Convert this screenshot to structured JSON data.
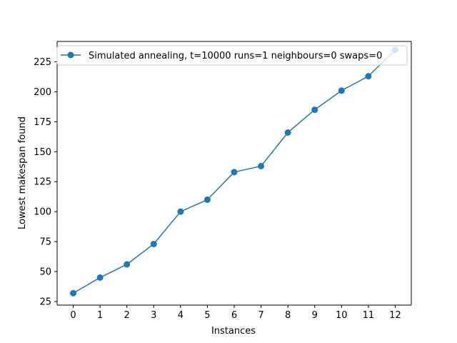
{
  "chart_data": {
    "type": "line",
    "title": "",
    "xlabel": "Instances",
    "ylabel": "Lowest makespan found",
    "x": [
      0,
      1,
      2,
      3,
      4,
      5,
      6,
      7,
      8,
      9,
      10,
      11,
      12
    ],
    "series": [
      {
        "name": "Simulated annealing, t=10000 runs=1 neighbours=0 swaps=0",
        "color": "#1f77b4",
        "marker": "circle",
        "values": [
          32,
          45,
          56,
          73,
          100,
          110,
          133,
          138,
          166,
          185,
          201,
          213,
          235
        ]
      }
    ],
    "xlim": [
      -0.6,
      12.6
    ],
    "ylim": [
      22,
      242
    ],
    "xticks": [
      0,
      1,
      2,
      3,
      4,
      5,
      6,
      7,
      8,
      9,
      10,
      11,
      12
    ],
    "yticks": [
      25,
      50,
      75,
      100,
      125,
      150,
      175,
      200,
      225
    ],
    "grid": false,
    "legend_position": "top-right"
  }
}
